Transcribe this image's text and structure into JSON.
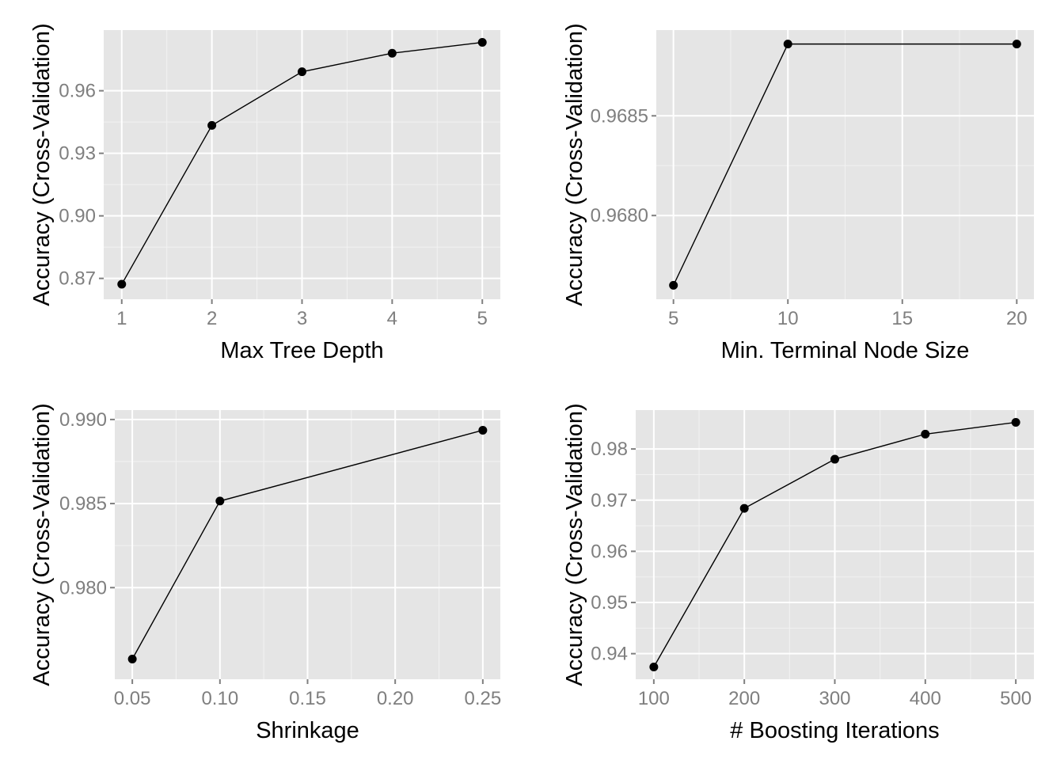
{
  "chart_data": [
    {
      "type": "line",
      "xlabel": "Max Tree Depth",
      "ylabel": "Accuracy (Cross-Validation)",
      "x": [
        1,
        2,
        3,
        4,
        5
      ],
      "y": [
        0.8672,
        0.9434,
        0.9691,
        0.978,
        0.9832
      ],
      "xlim": [
        0.8,
        5.2
      ],
      "ylim": [
        0.86,
        0.9891
      ],
      "xticks": [
        1,
        2,
        3,
        4,
        5
      ],
      "xtick_labels": [
        "1",
        "2",
        "3",
        "4",
        "5"
      ],
      "yticks": [
        0.87,
        0.9,
        0.93,
        0.96
      ],
      "ytick_labels": [
        "0.87",
        "0.90",
        "0.93",
        "0.96"
      ],
      "grid": true
    },
    {
      "type": "line",
      "xlabel": "Min. Terminal Node Size",
      "ylabel": "Accuracy (Cross-Validation)",
      "x": [
        5,
        10,
        20
      ],
      "y": [
        0.96765,
        0.96886,
        0.96886
      ],
      "xlim": [
        4.25,
        20.75
      ],
      "ylim": [
        0.96758,
        0.96893
      ],
      "xticks": [
        5,
        10,
        15,
        20
      ],
      "xtick_labels": [
        "5",
        "10",
        "15",
        "20"
      ],
      "yticks": [
        0.968,
        0.9685
      ],
      "ytick_labels": [
        "0.9680",
        "0.9685"
      ],
      "grid": true
    },
    {
      "type": "line",
      "xlabel": "Shrinkage",
      "ylabel": "Accuracy (Cross-Validation)",
      "x": [
        0.05,
        0.1,
        0.25
      ],
      "y": [
        0.97575,
        0.98515,
        0.98936
      ],
      "xlim": [
        0.04,
        0.26
      ],
      "ylim": [
        0.97455,
        0.99056
      ],
      "xticks": [
        0.05,
        0.1,
        0.15,
        0.2,
        0.25
      ],
      "xtick_labels": [
        "0.05",
        "0.10",
        "0.15",
        "0.20",
        "0.25"
      ],
      "yticks": [
        0.98,
        0.985,
        0.99
      ],
      "ytick_labels": [
        "0.980",
        "0.985",
        "0.990"
      ],
      "grid": true
    },
    {
      "type": "line",
      "xlabel": "# Boosting Iterations",
      "ylabel": "Accuracy (Cross-Validation)",
      "x": [
        100,
        200,
        300,
        400,
        500
      ],
      "y": [
        0.9374,
        0.9684,
        0.978,
        0.9829,
        0.9852
      ],
      "xlim": [
        80,
        520
      ],
      "ylim": [
        0.935,
        0.9876
      ],
      "xticks": [
        100,
        200,
        300,
        400,
        500
      ],
      "xtick_labels": [
        "100",
        "200",
        "300",
        "400",
        "500"
      ],
      "yticks": [
        0.94,
        0.95,
        0.96,
        0.97,
        0.98
      ],
      "ytick_labels": [
        "0.94",
        "0.95",
        "0.96",
        "0.97",
        "0.98"
      ],
      "grid": true
    }
  ]
}
